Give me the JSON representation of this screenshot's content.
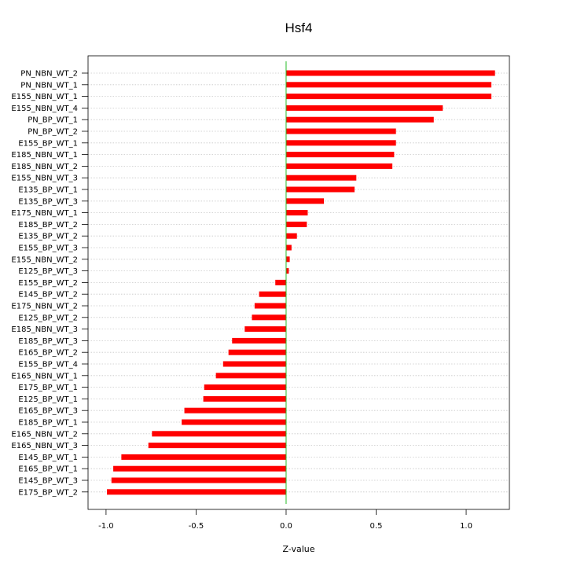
{
  "chart_data": {
    "type": "bar",
    "orientation": "horizontal",
    "title": "Hsf4",
    "xlabel": "Z-value",
    "ylabel": "",
    "xlim": [
      -1.1,
      1.24
    ],
    "x_ticks": [
      -1.0,
      -0.5,
      0.0,
      0.5,
      1.0
    ],
    "x_tick_labels": [
      "-1.0",
      "-0.5",
      "0.0",
      "0.5",
      "1.0"
    ],
    "grid": "horizontal dotted",
    "bar_color": "#ff0000",
    "zero_line_color": "#22bb22",
    "categories": [
      "PN_NBN_WT_2",
      "PN_NBN_WT_1",
      "E155_NBN_WT_1",
      "E155_NBN_WT_4",
      "PN_BP_WT_1",
      "PN_BP_WT_2",
      "E155_BP_WT_1",
      "E185_NBN_WT_1",
      "E185_NBN_WT_2",
      "E155_NBN_WT_3",
      "E135_BP_WT_1",
      "E135_BP_WT_3",
      "E175_NBN_WT_1",
      "E185_BP_WT_2",
      "E135_BP_WT_2",
      "E155_BP_WT_3",
      "E155_NBN_WT_2",
      "E125_BP_WT_3",
      "E155_BP_WT_2",
      "E145_BP_WT_2",
      "E175_NBN_WT_2",
      "E125_BP_WT_2",
      "E185_NBN_WT_3",
      "E185_BP_WT_3",
      "E165_BP_WT_2",
      "E155_BP_WT_4",
      "E165_NBN_WT_1",
      "E175_BP_WT_1",
      "E125_BP_WT_1",
      "E165_BP_WT_3",
      "E185_BP_WT_1",
      "E165_NBN_WT_2",
      "E165_NBN_WT_3",
      "E145_BP_WT_1",
      "E165_BP_WT_1",
      "E145_BP_WT_3",
      "E175_BP_WT_2"
    ],
    "values": [
      1.16,
      1.14,
      1.14,
      0.87,
      0.82,
      0.61,
      0.61,
      0.6,
      0.59,
      0.39,
      0.38,
      0.21,
      0.12,
      0.115,
      0.06,
      0.03,
      0.02,
      0.015,
      -0.06,
      -0.15,
      -0.175,
      -0.19,
      -0.23,
      -0.3,
      -0.32,
      -0.35,
      -0.39,
      -0.455,
      -0.46,
      -0.565,
      -0.58,
      -0.745,
      -0.765,
      -0.915,
      -0.96,
      -0.97,
      -0.995
    ]
  }
}
